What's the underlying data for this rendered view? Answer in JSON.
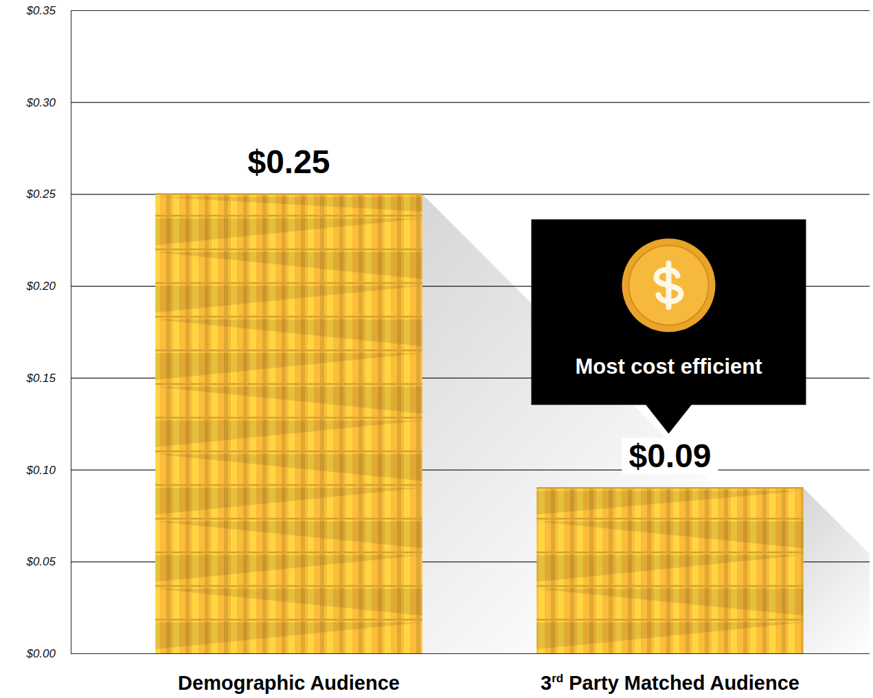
{
  "chart_data": {
    "type": "bar",
    "categories": [
      "Demographic Audience",
      "3rd Party Matched Audience"
    ],
    "values": [
      0.25,
      0.09
    ],
    "value_labels": [
      "$0.25",
      "$0.09"
    ],
    "data_labels": true,
    "color": "#fbbd3a",
    "ylim": [
      0,
      0.35
    ],
    "yticks": [
      {
        "value": 0,
        "label": "$0.00"
      },
      {
        "value": 0.05,
        "label": "$0.05"
      },
      {
        "value": 0.1,
        "label": "$0.10"
      },
      {
        "value": 0.15,
        "label": "$0.15"
      },
      {
        "value": 0.2,
        "label": "$0.20"
      },
      {
        "value": 0.25,
        "label": "$0.25"
      },
      {
        "value": 0.3,
        "label": "$0.30"
      },
      {
        "value": 0.35,
        "label": "$0.35"
      }
    ],
    "grid": true,
    "annotation": "Most cost efficient"
  }
}
